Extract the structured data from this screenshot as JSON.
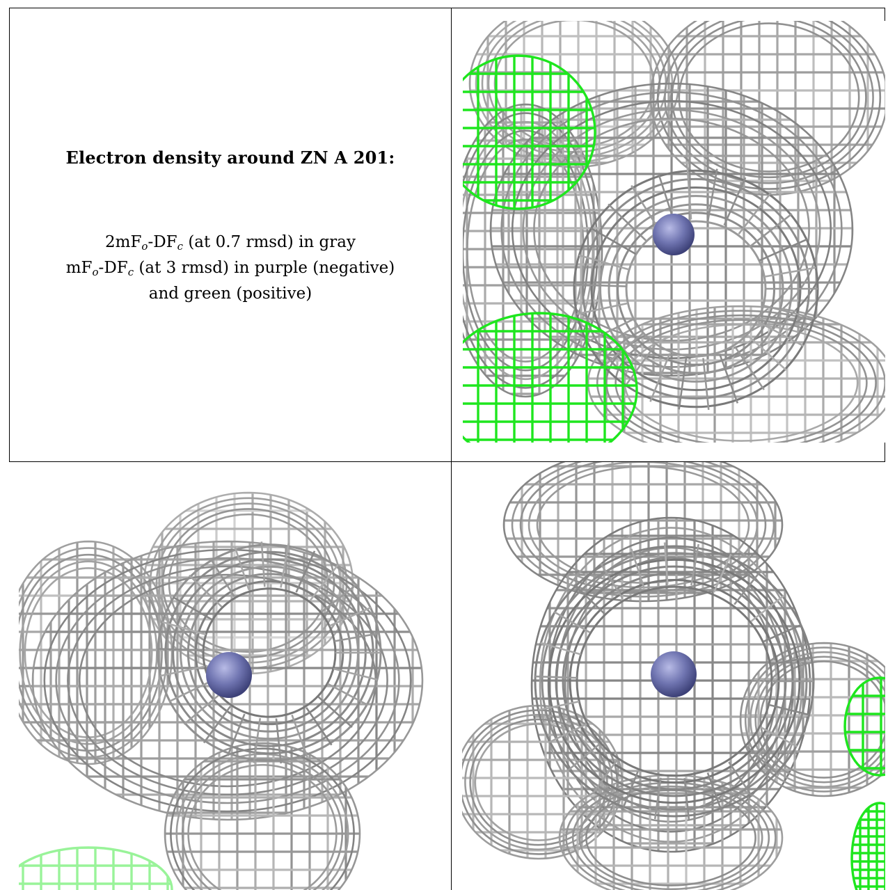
{
  "caption": {
    "title": "Electron density around ZN A 201:",
    "line1_main": "2mF",
    "line1_sub_o": "o",
    "line1_mid": "-DF",
    "line1_sub_c": "c",
    "line1_rest": " (at 0.7 rmsd) in gray",
    "line2_main": "mF",
    "line2_sub_o": "o",
    "line2_mid": "-DF",
    "line2_sub_c": "c",
    "line2_rest": " (at 3 rmsd) in purple (negative)",
    "line3": "and green (positive)"
  },
  "panels": [
    {
      "name": "view-top-right",
      "atom": "ZN A 201",
      "green_density": true
    },
    {
      "name": "view-bottom-left",
      "atom": "ZN A 201",
      "green_density": true
    },
    {
      "name": "view-bottom-right",
      "atom": "ZN A 201",
      "green_density": true
    }
  ],
  "colors": {
    "gray_mesh": "#8c8c8c",
    "green_mesh": "#1ee61e",
    "zinc_atom": "#6f74b0",
    "border": "#000000"
  }
}
